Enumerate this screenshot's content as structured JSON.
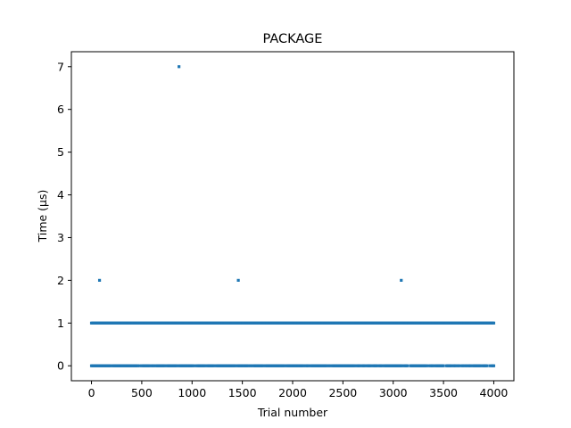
{
  "chart_data": {
    "type": "scatter",
    "title": "PACKAGE",
    "xlabel": "Trial number",
    "ylabel": "Time (μs)",
    "xlim": [
      -200,
      4200
    ],
    "ylim": [
      -0.35,
      7.35
    ],
    "xticks": [
      0,
      500,
      1000,
      1500,
      2000,
      2500,
      3000,
      3500,
      4000
    ],
    "yticks": [
      0,
      1,
      2,
      3,
      4,
      5,
      6,
      7
    ],
    "grid": false,
    "marker_color": "#1f77b4",
    "series": [
      {
        "note_levels": [
          0,
          1
        ],
        "level_ranges": [
          {
            "y": 0,
            "x_start": 0,
            "x_end": 4000
          },
          {
            "y": 1,
            "x_start": 0,
            "x_end": 4000
          }
        ],
        "points": [
          {
            "x": 80,
            "y": 2
          },
          {
            "x": 870,
            "y": 7
          },
          {
            "x": 1460,
            "y": 2
          },
          {
            "x": 3080,
            "y": 2
          }
        ]
      }
    ]
  }
}
